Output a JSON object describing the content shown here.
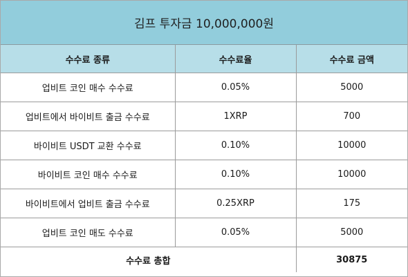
{
  "title": "김프 투자금 10,000,000원",
  "headers": [
    "수수료 종류",
    "수수료율",
    "수수료 금액"
  ],
  "rows": [
    {
      "type": "업비트 코인 매수 수수료",
      "rate": "0.05%",
      "amount": "5000"
    },
    {
      "type": "업비트에서 바이비트 출금 수수료",
      "rate": "1XRP",
      "amount": "700"
    },
    {
      "type": "바이비트 USDT 교환 수수료",
      "rate": "0.10%",
      "amount": "10000"
    },
    {
      "type": "바이비트 코인 매수 수수료",
      "rate": "0.10%",
      "amount": "10000"
    },
    {
      "type": "바이비트에서 업비트 출금 수수료",
      "rate": "0.25XRP",
      "amount": "175"
    },
    {
      "type": "업비트 코인 매도 수수료",
      "rate": "0.05%",
      "amount": "5000"
    }
  ],
  "total": {
    "label": "수수료 총합",
    "amount": "30875"
  },
  "colors": {
    "title_bg": "#92cddc",
    "header_bg": "#b7dee8",
    "grid": "#9a9a9a"
  }
}
